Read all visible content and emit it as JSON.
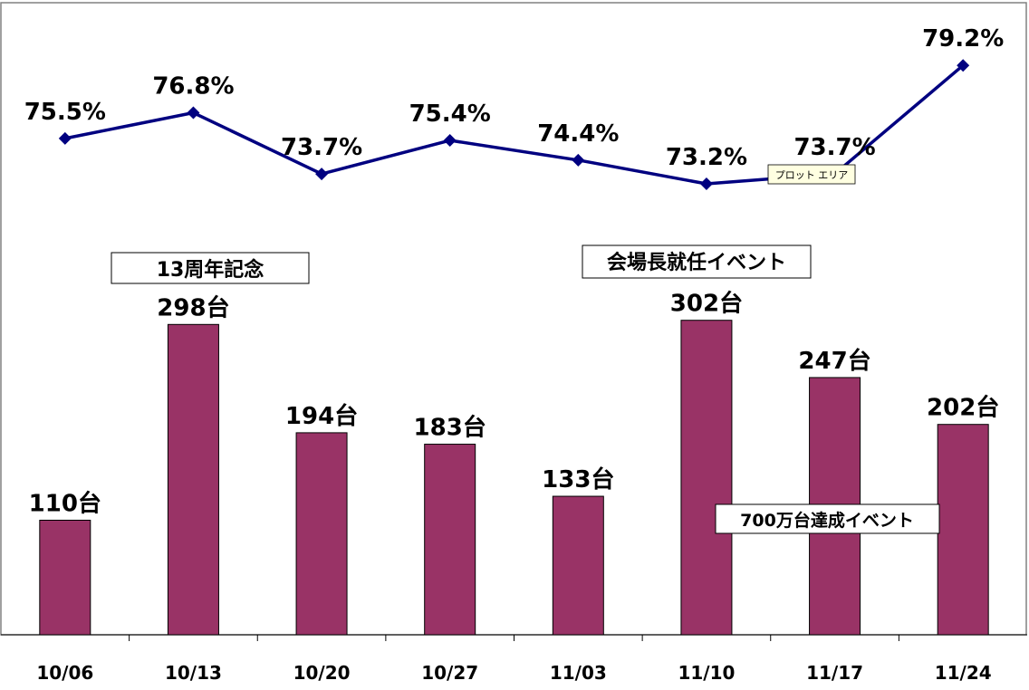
{
  "chart_data": {
    "type": "bar",
    "categories": [
      "10/06",
      "10/13",
      "10/20",
      "10/27",
      "11/03",
      "11/10",
      "11/17",
      "11/24"
    ],
    "series": [
      {
        "type": "bar",
        "values": [
          110,
          298,
          194,
          183,
          133,
          302,
          247,
          202
        ],
        "labels": [
          "110台",
          "298台",
          "194台",
          "183台",
          "133台",
          "302台",
          "247台",
          "202台"
        ],
        "color": "#993366"
      },
      {
        "type": "line",
        "values": [
          75.5,
          76.8,
          73.7,
          75.4,
          74.4,
          73.2,
          73.7,
          79.2
        ],
        "labels": [
          "75.5%",
          "76.8%",
          "73.7%",
          "75.4%",
          "74.4%",
          "73.2%",
          "73.7%",
          "79.2%"
        ],
        "color": "#000080"
      }
    ],
    "grid": false,
    "legend": "none",
    "annotations": [
      "13周年記念",
      "会場長就任イベント",
      "700万台達成イベント"
    ],
    "tooltip": "プロット エリア"
  }
}
